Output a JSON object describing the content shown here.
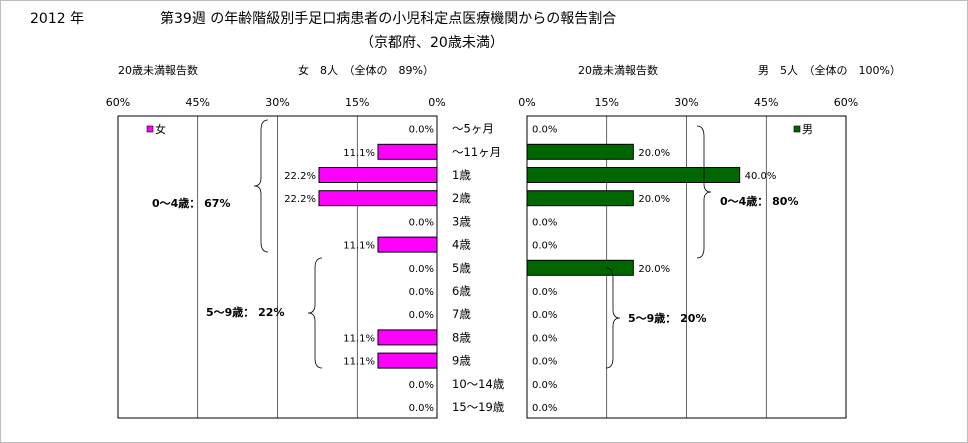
{
  "header": {
    "year": "2012 年",
    "title_line1": "第39週 の年齢階級別手足口病患者の小児科定点医療機関からの報告割合",
    "title_line2": "（京都府、20歳未満）"
  },
  "female_panel": {
    "subtitle_left": "20歳未満報告数",
    "subtitle_right": "女　8人　（全体の　89%）",
    "legend": "女",
    "note_0_4": "0～4歳：  67%",
    "note_5_9": "5～9歳：  22%",
    "color": "#ff00ff"
  },
  "male_panel": {
    "subtitle_left": "20歳未満報告数",
    "subtitle_right": "男　5人　（全体の　100%）",
    "legend": "男",
    "note_0_4": "0～4歳：  80%",
    "note_5_9": "5～9歳：  20%",
    "color": "#006600"
  },
  "chart_data": {
    "type": "bar",
    "orientation": "horizontal-butterfly",
    "categories": [
      "～5ヶ月",
      "～11ヶ月",
      "1歳",
      "2歳",
      "3歳",
      "4歳",
      "5歳",
      "6歳",
      "7歳",
      "8歳",
      "9歳",
      "10～14歳",
      "15～19歳"
    ],
    "series": [
      {
        "name": "女",
        "values": [
          0.0,
          11.1,
          22.2,
          22.2,
          0.0,
          11.1,
          0.0,
          0.0,
          0.0,
          11.1,
          11.1,
          0.0,
          0.0
        ],
        "labels": [
          "0.0%",
          "11.1%",
          "22.2%",
          "22.2%",
          "0.0%",
          "11.1%",
          "0.0%",
          "0.0%",
          "0.0%",
          "11.1%",
          "11.1%",
          "0.0%",
          "0.0%"
        ]
      },
      {
        "name": "男",
        "values": [
          0.0,
          20.0,
          40.0,
          20.0,
          0.0,
          0.0,
          20.0,
          0.0,
          0.0,
          0.0,
          0.0,
          0.0,
          0.0
        ],
        "labels": [
          "0.0%",
          "20.0%",
          "40.0%",
          "20.0%",
          "0.0%",
          "0.0%",
          "20.0%",
          "0.0%",
          "0.0%",
          "0.0%",
          "0.0%",
          "0.0%",
          "0.0%"
        ]
      }
    ],
    "xlim": [
      0,
      60
    ],
    "left_ticks": [
      "60%",
      "45%",
      "30%",
      "15%",
      "0%"
    ],
    "right_ticks": [
      "0%",
      "15%",
      "30%",
      "45%",
      "60%"
    ],
    "grid": true
  }
}
